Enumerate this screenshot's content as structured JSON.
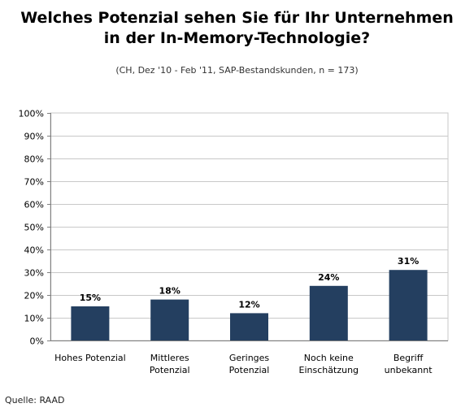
{
  "title_line1": "Welches Potenzial sehen Sie für Ihr Unternehmen",
  "title_line2": "in der In-Memory-Technologie?",
  "subtitle": "(CH, Dez '10 - Feb '11, SAP-Bestandskunden, n = 173)",
  "source": "Quelle: RAAD",
  "colors": {
    "bar": "#243f60",
    "grid": "#c8c8c8",
    "axis": "#808080"
  },
  "chart_data": {
    "type": "bar",
    "categories": [
      [
        "Hohes Potenzial"
      ],
      [
        "Mittleres",
        "Potenzial"
      ],
      [
        "Geringes",
        "Potenzial"
      ],
      [
        "Noch keine",
        "Einschätzung"
      ],
      [
        "Begriff",
        "unbekannt"
      ]
    ],
    "values": [
      15,
      18,
      12,
      24,
      31
    ],
    "value_labels": [
      "15%",
      "18%",
      "12%",
      "24%",
      "31%"
    ],
    "ylim": [
      0,
      100
    ],
    "yticks": [
      "0%",
      "10%",
      "20%",
      "30%",
      "40%",
      "50%",
      "60%",
      "70%",
      "80%",
      "90%",
      "100%"
    ],
    "grid": true,
    "legend": "none"
  }
}
